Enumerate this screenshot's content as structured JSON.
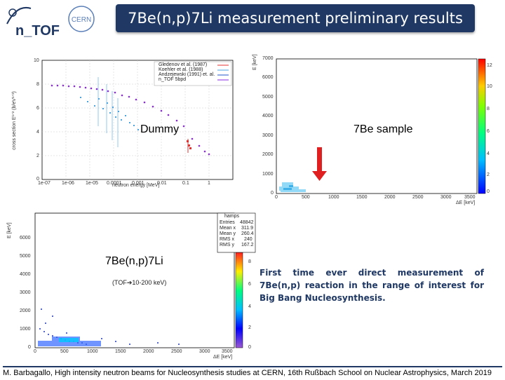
{
  "header": {
    "title": "7Be(n,p)7Li measurement preliminary results",
    "logo_ntof": "n_TOF",
    "logo_cern": "CERN"
  },
  "left_plot": {
    "legend": [
      "Gledenov et al. (1987)",
      "Koehler et al. (1988)",
      "Andzejewski (1991) et. al.",
      "n_TOF 5bpd"
    ],
    "yaxis_label": "cross section E¹ᐟ² (b/eV¹ᐟ²)",
    "xaxis_label": "neutron energy [MeV]",
    "y_ticks": [
      "10",
      "8",
      "6",
      "4",
      "2",
      "0"
    ],
    "x_ticks": [
      "1e-07",
      "1e-06",
      "1e-05",
      "0.0001",
      "0.001",
      "0.01",
      "0.1",
      "1"
    ],
    "overlay_label": "Dummy",
    "colors": {
      "gledenov": "#ff4444",
      "koehler": "#4aa3df",
      "andz": "#2255cc",
      "ntof": "#8a2be2"
    }
  },
  "right_plot": {
    "overlay_label": "7Be sample",
    "yaxis_label": "E [keV]",
    "xaxis_label": "ΔE [keV]",
    "y_ticks": [
      "7000",
      "6000",
      "5000",
      "4000",
      "3000",
      "2000",
      "1000",
      "0"
    ],
    "x_ticks": [
      "0",
      "500",
      "1000",
      "1500",
      "2000",
      "2500",
      "3000",
      "3500"
    ],
    "colorbar_ticks": [
      "12",
      "10",
      "8",
      "6",
      "4",
      "2",
      "0"
    ]
  },
  "bottom_plot": {
    "stats_title": "hamps",
    "stats": [
      {
        "k": "Entries",
        "v": "48842"
      },
      {
        "k": "Mean x",
        "v": "311.9"
      },
      {
        "k": "Mean y",
        "v": "260.4"
      },
      {
        "k": "RMS x",
        "v": "240"
      },
      {
        "k": "RMS y",
        "v": "167.2"
      }
    ],
    "label_reaction": "7Be(n,p)7Li",
    "label_range": "(TOF➔10-200 keV)",
    "yaxis_label": "E [keV]",
    "xaxis_label": "ΔE [keV]",
    "y_ticks": [
      "6000",
      "5000",
      "4000",
      "3000",
      "2000",
      "1000",
      "0"
    ],
    "x_ticks": [
      "0",
      "500",
      "1000",
      "1500",
      "2000",
      "2500",
      "3000",
      "3500"
    ],
    "colorbar_ticks": [
      "8",
      "6",
      "4",
      "2",
      "0"
    ]
  },
  "highlight_text": "First time ever direct measurement of 7Be(n,p) reaction in the range of interest for Big Bang Nucleosynthesis.",
  "footer": "M. Barbagallo, High intensity neutron beams for Nucleosynthesis studies at CERN, 16th Rußbach School on Nuclear Astrophysics, March 2019"
}
